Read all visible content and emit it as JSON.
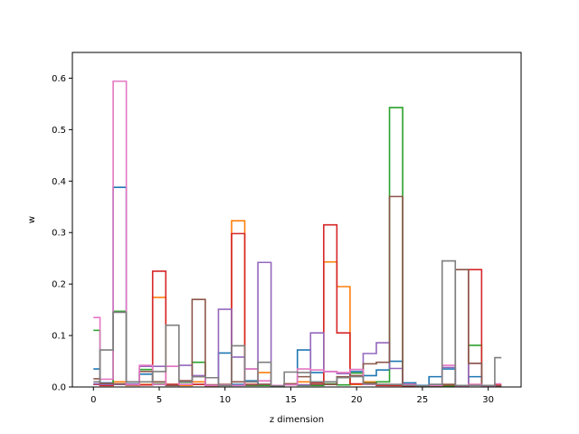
{
  "chart_data": {
    "type": "line",
    "drawstyle": "steps-mid",
    "title": "",
    "xlabel": "z dimension",
    "ylabel": "w",
    "xlim": [
      -1.6,
      32.5
    ],
    "ylim": [
      0,
      0.65
    ],
    "x_ticks": [
      0,
      5,
      10,
      15,
      20,
      25,
      30
    ],
    "y_ticks": [
      0.0,
      0.1,
      0.2,
      0.3,
      0.4,
      0.5,
      0.6
    ],
    "x": [
      0,
      1,
      2,
      3,
      4,
      5,
      6,
      7,
      8,
      9,
      10,
      11,
      12,
      13,
      14,
      15,
      16,
      17,
      18,
      19,
      20,
      21,
      22,
      23,
      24,
      25,
      26,
      27,
      28,
      29,
      30,
      31
    ],
    "grid": false,
    "legend": "none",
    "series": [
      {
        "color": "#1f77b4",
        "values": [
          0.035,
          0.008,
          0.388,
          0.006,
          0.025,
          0.005,
          0.005,
          0.003,
          0.005,
          0.003,
          0.066,
          0.005,
          0.012,
          0.005,
          0.002,
          0.004,
          0.072,
          0.028,
          0.005,
          0.018,
          0.03,
          0.022,
          0.033,
          0.05,
          0.008,
          0.003,
          0.02,
          0.035,
          0.003,
          0.02,
          0.003,
          0.002
        ]
      },
      {
        "color": "#ff7f0e",
        "values": [
          0.005,
          0.003,
          0.01,
          0.003,
          0.005,
          0.174,
          0.005,
          0.003,
          0.01,
          0.002,
          0.005,
          0.323,
          0.01,
          0.028,
          0.002,
          0.005,
          0.01,
          0.01,
          0.243,
          0.195,
          0.005,
          0.01,
          0.005,
          0.003,
          0.002,
          0.002,
          0.003,
          0.005,
          0.002,
          0.005,
          0.002,
          0.005
        ]
      },
      {
        "color": "#2ca02c",
        "values": [
          0.11,
          0.005,
          0.147,
          0.004,
          0.034,
          0.006,
          0.004,
          0.009,
          0.048,
          0.003,
          0.003,
          0.003,
          0.003,
          0.003,
          0.002,
          0.004,
          0.003,
          0.003,
          0.006,
          0.004,
          0.027,
          0.008,
          0.01,
          0.543,
          0.003,
          0.002,
          0.002,
          0.002,
          0.002,
          0.081,
          0.002,
          0.002
        ]
      },
      {
        "color": "#d62728",
        "values": [
          0.005,
          0.003,
          0.005,
          0.004,
          0.004,
          0.225,
          0.005,
          0.012,
          0.005,
          0.004,
          0.004,
          0.298,
          0.005,
          0.005,
          0.002,
          0.006,
          0.004,
          0.008,
          0.315,
          0.105,
          0.006,
          0.007,
          0.003,
          0.003,
          0.002,
          0.002,
          0.003,
          0.004,
          0.002,
          0.228,
          0.002,
          0.004
        ]
      },
      {
        "color": "#9467bd",
        "values": [
          0.006,
          0.005,
          0.005,
          0.004,
          0.04,
          0.04,
          0.04,
          0.042,
          0.022,
          0.003,
          0.151,
          0.058,
          0.035,
          0.242,
          0.003,
          0.004,
          0.004,
          0.105,
          0.03,
          0.026,
          0.034,
          0.065,
          0.086,
          0.036,
          0.005,
          0.002,
          0.005,
          0.038,
          0.002,
          0.046,
          0.002,
          0.002
        ]
      },
      {
        "color": "#8c564b",
        "values": [
          0.016,
          0.007,
          0.006,
          0.005,
          0.03,
          0.01,
          0.003,
          0.012,
          0.17,
          0.004,
          0.005,
          0.01,
          0.004,
          0.005,
          0.002,
          0.006,
          0.02,
          0.005,
          0.005,
          0.02,
          0.022,
          0.045,
          0.048,
          0.37,
          0.005,
          0.002,
          0.003,
          0.005,
          0.228,
          0.046,
          0.002,
          0.002
        ]
      },
      {
        "color": "#e377c2",
        "values": [
          0.135,
          0.015,
          0.594,
          0.005,
          0.042,
          0.005,
          0.04,
          0.005,
          0.02,
          0.003,
          0.004,
          0.003,
          0.035,
          0.012,
          0.003,
          0.004,
          0.035,
          0.033,
          0.03,
          0.028,
          0.034,
          0.005,
          0.005,
          0.005,
          0.005,
          0.002,
          0.003,
          0.042,
          0.002,
          0.005,
          0.002,
          0.006
        ]
      },
      {
        "color": "#7f7f7f",
        "values": [
          0.01,
          0.072,
          0.145,
          0.01,
          0.01,
          0.03,
          0.12,
          0.01,
          0.02,
          0.018,
          0.003,
          0.08,
          0.01,
          0.048,
          0.002,
          0.029,
          0.028,
          0.01,
          0.01,
          0.018,
          0.02,
          0.006,
          0.005,
          0.005,
          0.003,
          0.002,
          0.005,
          0.245,
          0.003,
          0.003,
          0.003,
          0.057
        ]
      }
    ]
  }
}
